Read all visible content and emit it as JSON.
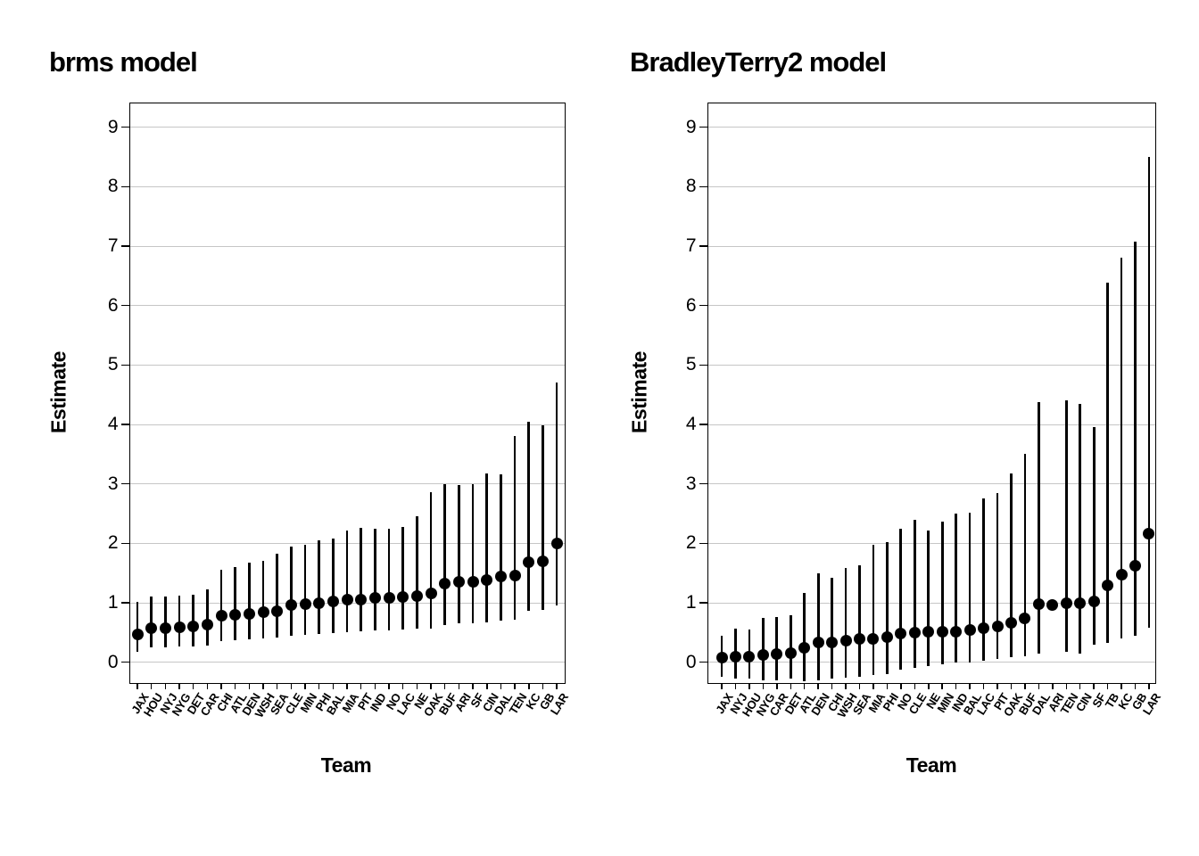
{
  "colors": {
    "background": "#ffffff",
    "point": "#000000",
    "error_bar": "#000000",
    "grid": "#c6c6c6",
    "panel_border": "#000000",
    "text": "#000000"
  },
  "chart_data": [
    {
      "type": "scatter",
      "title": "brms model",
      "xlabel": "Team",
      "ylabel": "Estimate",
      "ylim": [
        -0.35,
        9.4
      ],
      "yticks": [
        0,
        1,
        2,
        3,
        4,
        5,
        6,
        7,
        8,
        9
      ],
      "grid": "horizontal-major-only",
      "legend": "none",
      "marker": "filled-circle-with-vertical-interval",
      "points": [
        {
          "team": "JAX",
          "est": 0.47,
          "lo": 0.18,
          "hi": 1.01
        },
        {
          "team": "HOU",
          "est": 0.57,
          "lo": 0.25,
          "hi": 1.1
        },
        {
          "team": "NYJ",
          "est": 0.58,
          "lo": 0.25,
          "hi": 1.1
        },
        {
          "team": "NYG",
          "est": 0.59,
          "lo": 0.26,
          "hi": 1.12
        },
        {
          "team": "DET",
          "est": 0.6,
          "lo": 0.27,
          "hi": 1.14
        },
        {
          "team": "CAR",
          "est": 0.63,
          "lo": 0.28,
          "hi": 1.22
        },
        {
          "team": "CHI",
          "est": 0.78,
          "lo": 0.36,
          "hi": 1.55
        },
        {
          "team": "ATL",
          "est": 0.8,
          "lo": 0.37,
          "hi": 1.6
        },
        {
          "team": "DEN",
          "est": 0.82,
          "lo": 0.38,
          "hi": 1.67
        },
        {
          "team": "WSH",
          "est": 0.84,
          "lo": 0.4,
          "hi": 1.7
        },
        {
          "team": "SEA",
          "est": 0.86,
          "lo": 0.42,
          "hi": 1.82
        },
        {
          "team": "CLE",
          "est": 0.97,
          "lo": 0.45,
          "hi": 1.95
        },
        {
          "team": "MIN",
          "est": 0.98,
          "lo": 0.46,
          "hi": 1.98
        },
        {
          "team": "PHI",
          "est": 1.0,
          "lo": 0.48,
          "hi": 2.05
        },
        {
          "team": "BAL",
          "est": 1.02,
          "lo": 0.49,
          "hi": 2.08
        },
        {
          "team": "MIA",
          "est": 1.05,
          "lo": 0.5,
          "hi": 2.22
        },
        {
          "team": "PIT",
          "est": 1.06,
          "lo": 0.52,
          "hi": 2.26
        },
        {
          "team": "IND",
          "est": 1.08,
          "lo": 0.53,
          "hi": 2.24
        },
        {
          "team": "NO",
          "est": 1.09,
          "lo": 0.54,
          "hi": 2.25
        },
        {
          "team": "LAC",
          "est": 1.1,
          "lo": 0.55,
          "hi": 2.27
        },
        {
          "team": "NE",
          "est": 1.12,
          "lo": 0.56,
          "hi": 2.46
        },
        {
          "team": "OAK",
          "est": 1.16,
          "lo": 0.57,
          "hi": 2.86
        },
        {
          "team": "BUF",
          "est": 1.33,
          "lo": 0.63,
          "hi": 3.0
        },
        {
          "team": "ARI",
          "est": 1.36,
          "lo": 0.65,
          "hi": 2.98
        },
        {
          "team": "SF",
          "est": 1.36,
          "lo": 0.66,
          "hi": 3.0
        },
        {
          "team": "CIN",
          "est": 1.38,
          "lo": 0.67,
          "hi": 3.18
        },
        {
          "team": "DAL",
          "est": 1.44,
          "lo": 0.7,
          "hi": 3.16
        },
        {
          "team": "TEN",
          "est": 1.46,
          "lo": 0.71,
          "hi": 3.8
        },
        {
          "team": "KC",
          "est": 1.69,
          "lo": 0.86,
          "hi": 4.05
        },
        {
          "team": "GB",
          "est": 1.7,
          "lo": 0.88,
          "hi": 3.98
        },
        {
          "team": "LAR",
          "est": 2.0,
          "lo": 0.96,
          "hi": 4.7
        }
      ]
    },
    {
      "type": "scatter",
      "title": "BradleyTerry2 model",
      "xlabel": "Team",
      "ylabel": "Estimate",
      "ylim": [
        -0.35,
        9.4
      ],
      "yticks": [
        0,
        1,
        2,
        3,
        4,
        5,
        6,
        7,
        8,
        9
      ],
      "grid": "horizontal-major-only",
      "legend": "none",
      "marker": "filled-circle-with-vertical-interval",
      "points": [
        {
          "team": "JAX",
          "est": 0.08,
          "lo": -0.25,
          "hi": 0.45
        },
        {
          "team": "NYJ",
          "est": 0.1,
          "lo": -0.28,
          "hi": 0.56
        },
        {
          "team": "HOU",
          "est": 0.1,
          "lo": -0.27,
          "hi": 0.55
        },
        {
          "team": "NYG",
          "est": 0.13,
          "lo": -0.3,
          "hi": 0.74
        },
        {
          "team": "CAR",
          "est": 0.14,
          "lo": -0.3,
          "hi": 0.76
        },
        {
          "team": "DET",
          "est": 0.15,
          "lo": -0.28,
          "hi": 0.79
        },
        {
          "team": "ATL",
          "est": 0.25,
          "lo": -0.32,
          "hi": 1.17
        },
        {
          "team": "DEN",
          "est": 0.33,
          "lo": -0.3,
          "hi": 1.5
        },
        {
          "team": "CHI",
          "est": 0.33,
          "lo": -0.27,
          "hi": 1.42
        },
        {
          "team": "WSH",
          "est": 0.36,
          "lo": -0.26,
          "hi": 1.58
        },
        {
          "team": "SEA",
          "est": 0.39,
          "lo": -0.24,
          "hi": 1.63
        },
        {
          "team": "MIA",
          "est": 0.4,
          "lo": -0.22,
          "hi": 1.97
        },
        {
          "team": "PHI",
          "est": 0.42,
          "lo": -0.2,
          "hi": 2.02
        },
        {
          "team": "NO",
          "est": 0.48,
          "lo": -0.12,
          "hi": 2.25
        },
        {
          "team": "CLE",
          "est": 0.5,
          "lo": -0.1,
          "hi": 2.4
        },
        {
          "team": "NE",
          "est": 0.51,
          "lo": -0.06,
          "hi": 2.22
        },
        {
          "team": "MIN",
          "est": 0.51,
          "lo": -0.04,
          "hi": 2.37
        },
        {
          "team": "IND",
          "est": 0.52,
          "lo": 0.0,
          "hi": 2.5
        },
        {
          "team": "BAL",
          "est": 0.55,
          "lo": 0.0,
          "hi": 2.52
        },
        {
          "team": "LAC",
          "est": 0.58,
          "lo": 0.03,
          "hi": 2.75
        },
        {
          "team": "PIT",
          "est": 0.61,
          "lo": 0.05,
          "hi": 2.84
        },
        {
          "team": "OAK",
          "est": 0.66,
          "lo": 0.08,
          "hi": 3.17
        },
        {
          "team": "BUF",
          "est": 0.74,
          "lo": 0.1,
          "hi": 3.5
        },
        {
          "team": "DAL",
          "est": 0.98,
          "lo": 0.15,
          "hi": 4.37
        },
        {
          "team": "ARI",
          "est": 0.97,
          "lo": 0.97,
          "hi": 0.97
        },
        {
          "team": "TEN",
          "est": 1.0,
          "lo": 0.17,
          "hi": 4.4
        },
        {
          "team": "CIN",
          "est": 1.0,
          "lo": 0.15,
          "hi": 4.35
        },
        {
          "team": "SF",
          "est": 1.02,
          "lo": 0.3,
          "hi": 3.96
        },
        {
          "team": "TB",
          "est": 1.3,
          "lo": 0.32,
          "hi": 6.38
        },
        {
          "team": "KC",
          "est": 1.47,
          "lo": 0.4,
          "hi": 6.8
        },
        {
          "team": "GB",
          "est": 1.63,
          "lo": 0.45,
          "hi": 7.08
        },
        {
          "team": "LAR",
          "est": 2.17,
          "lo": 0.58,
          "hi": 8.5
        }
      ]
    }
  ]
}
